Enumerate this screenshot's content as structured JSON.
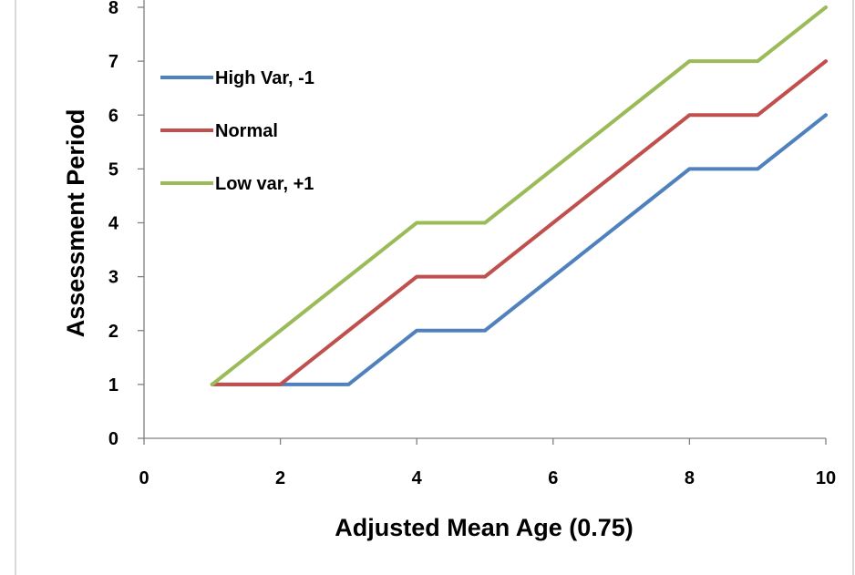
{
  "chart_data": {
    "type": "line",
    "title": "",
    "xlabel": "Adjusted Mean Age (0.75)",
    "ylabel": "Assessment Period",
    "xlim": [
      0,
      10
    ],
    "ylim": [
      0,
      8
    ],
    "x_ticks": [
      "0",
      "2",
      "4",
      "6",
      "8",
      "10"
    ],
    "y_ticks": [
      "0",
      "1",
      "2",
      "3",
      "4",
      "5",
      "6",
      "7",
      "8"
    ],
    "grid": false,
    "legend_position": "top-left",
    "x": [
      1,
      2,
      3,
      4,
      5,
      6,
      7,
      8,
      9,
      10
    ],
    "series": [
      {
        "name": "High Var, -1",
        "color": "#4f81bd",
        "values": [
          1,
          1,
          1,
          2,
          2,
          3,
          4,
          5,
          5,
          6
        ]
      },
      {
        "name": "Normal",
        "color": "#c0504d",
        "values": [
          1,
          1,
          2,
          3,
          3,
          4,
          5,
          6,
          6,
          7
        ]
      },
      {
        "name": "Low var, +1",
        "color": "#9bbb59",
        "values": [
          1,
          2,
          3,
          4,
          4,
          5,
          6,
          7,
          7,
          8
        ]
      }
    ]
  }
}
